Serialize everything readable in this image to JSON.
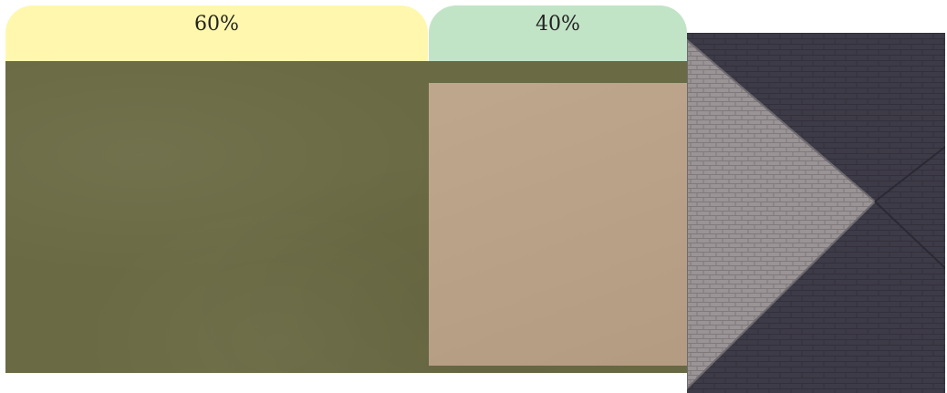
{
  "tabs": {
    "left_label": "60%",
    "right_label": "40%"
  },
  "colors": {
    "left_tab": "#fff7ad",
    "right_tab": "#c2e4c6",
    "grass": "#6a6a44",
    "sand": "#bba287",
    "roof_dark": "#3e3b48",
    "roof_light": "#9a9496"
  },
  "split": {
    "left_percent": 60,
    "right_percent": 40
  }
}
